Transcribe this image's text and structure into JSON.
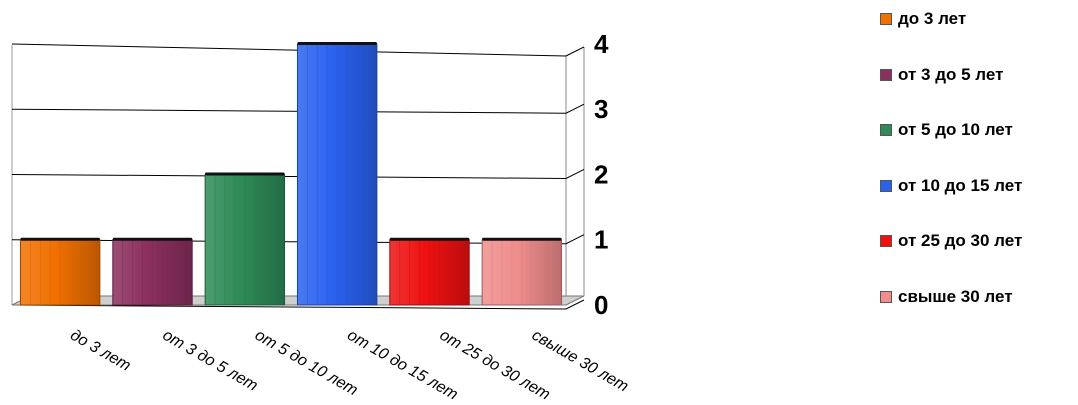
{
  "chart_data": {
    "type": "bar",
    "categories": [
      "до 3 лет",
      "от 3 до 5 лет",
      "от 5 до 10 лет",
      "от 10 до 15 лет",
      "от 25 до 30 лет",
      "свыше 30 лет"
    ],
    "values": [
      1,
      1,
      2,
      4,
      1,
      1
    ],
    "ylim": [
      0,
      4
    ],
    "yticks": [
      "0",
      "1",
      "2",
      "3",
      "4"
    ],
    "grid": true,
    "legend_position": "right",
    "legend": [
      "до 3 лет",
      "от 3 до 5 лет",
      "от 5 до 10 лет",
      "от 10 до 15 лет",
      "от 25 до 30 лет",
      "свыше 30 лет"
    ],
    "x_tick_labels": [
      "до 3 лет",
      "от 3 до 5 лет",
      "от 5 до 10 лет",
      "от 10 до 15 лет",
      "от 25 до 30 лет",
      "свыше 30 лет"
    ],
    "colors": [
      "#f07000",
      "#8b2f5e",
      "#2e8b57",
      "#2a62f0",
      "#ee1111",
      "#f08d8d"
    ]
  }
}
